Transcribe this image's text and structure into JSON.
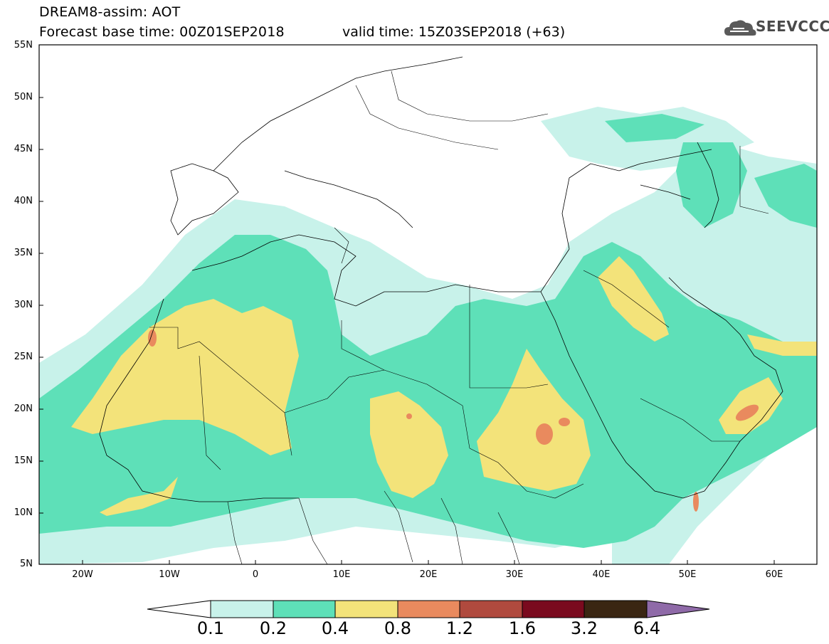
{
  "header": {
    "title": "DREAM8-assim: AOT",
    "base_time": "Forecast base time: 00Z01SEP2018",
    "valid_time": "valid time: 15Z03SEP2018 (+63)",
    "logo_text": "SEEVCCC",
    "logo_icon": "cloud-icon"
  },
  "map": {
    "lat_labels": [
      "55N",
      "50N",
      "45N",
      "40N",
      "35N",
      "30N",
      "25N",
      "20N",
      "15N",
      "10N",
      "5N"
    ],
    "lon_labels": [
      "20W",
      "10W",
      "0",
      "10E",
      "20E",
      "30E",
      "40E",
      "50E",
      "60E"
    ],
    "lat_range": [
      5,
      55
    ],
    "lon_range": [
      -25,
      65
    ],
    "projection": "cylindrical equidistant",
    "variable": "AOT"
  },
  "colorbar": {
    "levels": [
      "0.1",
      "0.2",
      "0.4",
      "0.8",
      "1.2",
      "1.6",
      "3.2",
      "6.4"
    ],
    "colors": [
      "#c8f2ea",
      "#5ee0b8",
      "#f3e37a",
      "#e98a5e",
      "#b04a3e",
      "#7a0a1e",
      "#3a2612",
      "#8f6aa8"
    ]
  }
}
